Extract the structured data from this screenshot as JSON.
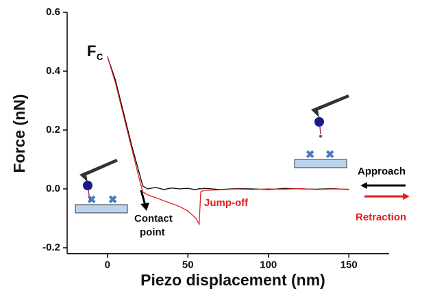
{
  "chart_data": {
    "type": "line",
    "x_label": "Piezo displacement (nm)",
    "y_label": "Force (nN)",
    "x": [
      0,
      5,
      10,
      15,
      20,
      22,
      25,
      30,
      35,
      40,
      45,
      50,
      55,
      57,
      58,
      60,
      70,
      80,
      90,
      100,
      110,
      120,
      130,
      140,
      150
    ],
    "series": [
      {
        "name": "Approach",
        "color": "#000000",
        "values": [
          0.45,
          0.37,
          0.26,
          0.15,
          0.05,
          0.01,
          0.0,
          0.005,
          -0.002,
          0.003,
          0.0,
          0.002,
          -0.003,
          0.001,
          0.0,
          0.002,
          -0.002,
          0.001,
          0.0,
          -0.002,
          0.002,
          0.0,
          -0.001,
          0.001,
          -0.002
        ]
      },
      {
        "name": "Retraction",
        "color": "#e0201c",
        "values": [
          0.45,
          0.36,
          0.25,
          0.14,
          0.03,
          -0.01,
          -0.02,
          -0.03,
          -0.04,
          -0.05,
          -0.06,
          -0.075,
          -0.1,
          -0.12,
          -0.01,
          -0.005,
          -0.003,
          0.0,
          -0.002,
          0.0,
          -0.001,
          0.001,
          -0.002,
          0.0,
          -0.001
        ]
      }
    ],
    "xlim": [
      -25,
      175
    ],
    "xticks": [
      0,
      50,
      100,
      150
    ],
    "ylim": [
      -0.22,
      0.6
    ],
    "yticks": [
      {
        "value": -0.2,
        "label": "-0.2"
      },
      {
        "value": 0,
        "label": "0.0"
      },
      {
        "value": 0.2,
        "label": "0.2"
      },
      {
        "value": 0.4,
        "label": "0.4"
      },
      {
        "value": 0.6,
        "label": "0.6"
      }
    ],
    "legend": "right",
    "annotations": {
      "fc": "F",
      "fc_sub": "C",
      "contact": [
        "Contact",
        "point"
      ],
      "jump": "Jump-off"
    }
  }
}
